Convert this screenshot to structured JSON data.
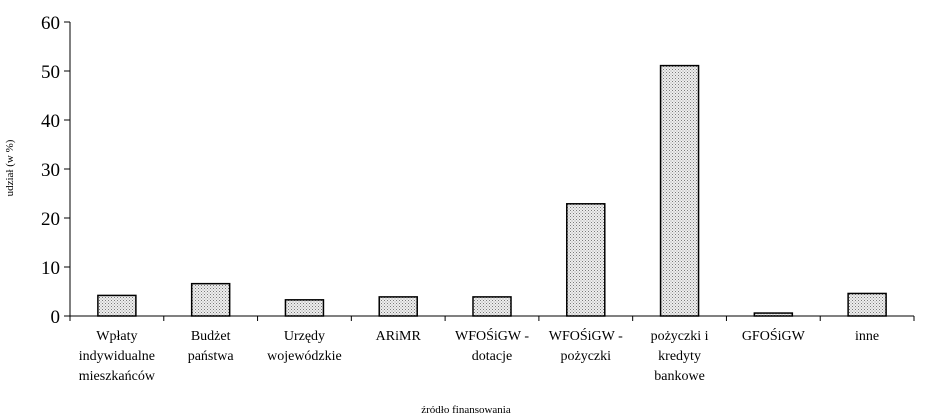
{
  "chart_data": {
    "type": "bar",
    "title": "",
    "xlabel": "źródło finansowania",
    "ylabel": "udział (w %)",
    "ylim": [
      0,
      60
    ],
    "yticks": [
      0,
      10,
      20,
      30,
      40,
      50,
      60
    ],
    "grid": false,
    "legend": "none",
    "bar_fill": "#d8d8d8",
    "bar_stroke": "#000000",
    "categories": [
      [
        "Wpłaty",
        "indywidualne",
        "mieszkańców"
      ],
      [
        "Budżet",
        "państwa"
      ],
      [
        "Urzędy",
        "wojewódzkie"
      ],
      [
        "ARiMR"
      ],
      [
        "WFOŚiGW -",
        "dotacje"
      ],
      [
        "WFOŚiGW -",
        "pożyczki"
      ],
      [
        "pożyczki i",
        "kredyty",
        "bankowe"
      ],
      [
        "GFOŚiGW"
      ],
      [
        "inne"
      ]
    ],
    "values": [
      4.2,
      6.6,
      3.3,
      3.9,
      3.9,
      22.9,
      51.1,
      0.6,
      4.6
    ]
  }
}
